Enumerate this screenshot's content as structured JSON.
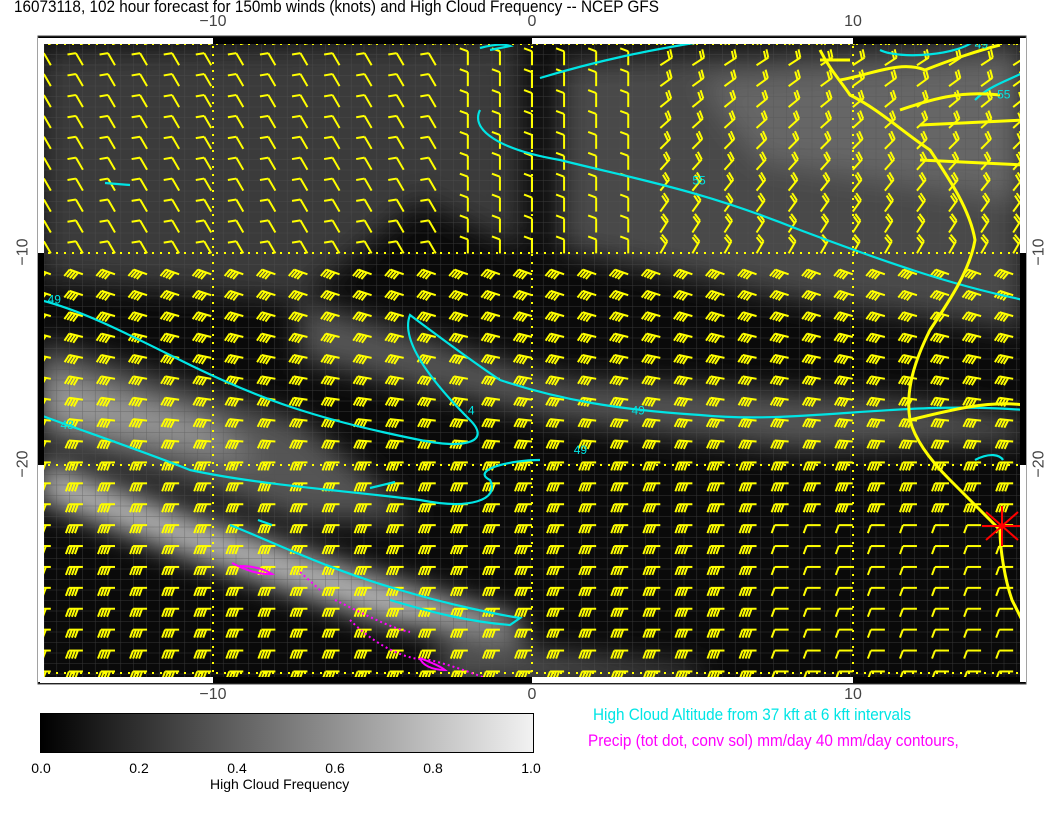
{
  "title": "16073118, 102 hour forecast for 150mb winds (knots) and High Cloud Frequency -- NCEP GFS",
  "map": {
    "x_ticks": [
      {
        "value": -10,
        "label": "−10"
      },
      {
        "value": 0,
        "label": "0"
      },
      {
        "value": 10,
        "label": "10"
      }
    ],
    "y_ticks": [
      {
        "value": -10,
        "label": "−10"
      },
      {
        "value": -20,
        "label": "−20"
      }
    ],
    "lon_range": [
      -15.4,
      15.4
    ],
    "lat_range": [
      -30.6,
      0.4
    ],
    "contour_labels": [
      {
        "label": "55",
        "lon": 5,
        "lat": -6.7
      },
      {
        "label": "55",
        "lon": 14.5,
        "lat": -2.6
      },
      {
        "label": "49",
        "lon": 13.8,
        "lat": -0.2
      },
      {
        "label": "55",
        "lon": 5.3,
        "lat": 0.3
      },
      {
        "label": "49",
        "lon": -15.1,
        "lat": -12.4
      },
      {
        "label": "49",
        "lon": 3.1,
        "lat": -17.7
      },
      {
        "label": "49",
        "lon": 1.3,
        "lat": -19.6
      },
      {
        "label": "43",
        "lon": -14.7,
        "lat": -18.4
      },
      {
        "label": "4",
        "lon": -2,
        "lat": -17.7
      }
    ],
    "marker": {
      "symbol": "red-star",
      "lon": 14.6,
      "lat": -22.8
    },
    "colors": {
      "background": "#000000",
      "wind_barbs": "#ffff00",
      "coastline": "#ffff00",
      "cloud_altitude_contours": "#00e5e5",
      "precip_contours": "#ff00ff",
      "marker": "#ff0000"
    }
  },
  "colorbar": {
    "label": "High Cloud Frequency",
    "range": [
      0.0,
      1.0
    ],
    "ticks": [
      "0.0",
      "0.2",
      "0.4",
      "0.6",
      "0.8",
      "1.0"
    ],
    "colors": [
      "#000000",
      "#f2f2f2"
    ]
  },
  "legend": {
    "cloud_altitude": "High Cloud Altitude from 37 kft at 6 kft intervals",
    "precip": "Precip (tot dot, conv sol) mm/day 40 mm/day contours,"
  }
}
